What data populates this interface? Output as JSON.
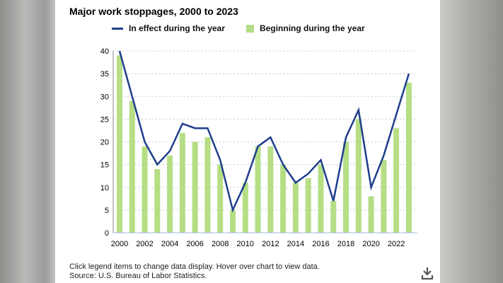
{
  "chart_data": {
    "type": "bar",
    "title": "Major work stoppages, 2000 to 2023",
    "categories": [
      2000,
      2001,
      2002,
      2003,
      2004,
      2005,
      2006,
      2007,
      2008,
      2009,
      2010,
      2011,
      2012,
      2013,
      2014,
      2015,
      2016,
      2017,
      2018,
      2019,
      2020,
      2021,
      2022,
      2023
    ],
    "x_tick_labels": [
      "2000",
      "2002",
      "2004",
      "2006",
      "2008",
      "2010",
      "2012",
      "2014",
      "2016",
      "2018",
      "2020",
      "2022"
    ],
    "y_tick_labels": [
      "0",
      "5",
      "10",
      "15",
      "20",
      "25",
      "30",
      "35",
      "40"
    ],
    "ylim": [
      0,
      40
    ],
    "grid": true,
    "legend_placement": "top",
    "series": [
      {
        "name": "In effect during the year",
        "type": "line",
        "color": "#1f3e8c",
        "values": [
          40,
          30,
          20,
          15,
          18,
          24,
          23,
          23,
          16,
          5,
          11,
          19,
          21,
          15,
          11,
          13,
          16,
          7,
          21,
          27,
          10,
          17,
          26,
          35
        ]
      },
      {
        "name": "Beginning during the year",
        "type": "bar",
        "color": "#b5de85",
        "values": [
          39,
          29,
          19,
          14,
          17,
          22,
          20,
          21,
          15,
          5,
          11,
          19,
          19,
          15,
          11,
          12,
          15,
          7,
          20,
          25,
          8,
          16,
          23,
          33
        ]
      }
    ]
  },
  "footer": {
    "note": "Click legend items to change data display. Hover over chart to view data.",
    "source": "Source: U.S. Bureau of Labor Statistics."
  },
  "icons": {
    "download": "download-icon"
  }
}
